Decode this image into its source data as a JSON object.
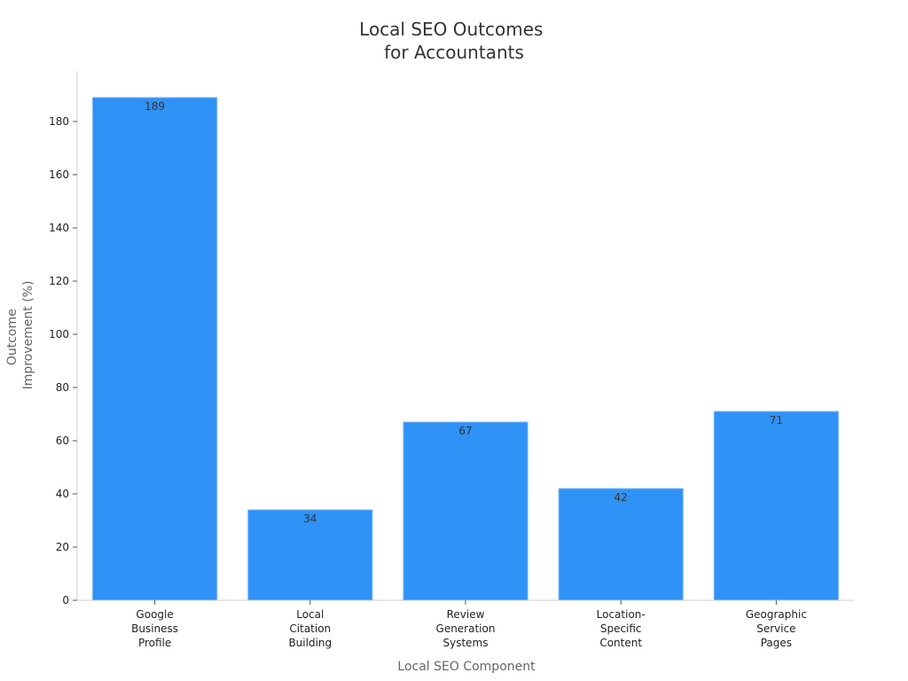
{
  "chart_data": {
    "type": "bar",
    "title": [
      "Local SEO Outcomes",
      "for Accountants"
    ],
    "xlabel": "Local SEO Component",
    "ylabel": [
      "Outcome",
      "Improvement (%)"
    ],
    "categories": [
      [
        "Google",
        "Business",
        "Profile"
      ],
      [
        "Local",
        "Citation",
        "Building"
      ],
      [
        "Review",
        "Generation",
        "Systems"
      ],
      [
        "Location-",
        "Specific",
        "Content"
      ],
      [
        "Geographic",
        "Service",
        "Pages"
      ]
    ],
    "values": [
      189,
      34,
      67,
      42,
      71
    ],
    "data_labels": [
      "189",
      "34",
      "67",
      "42",
      "71"
    ],
    "ylim": [
      0,
      199
    ],
    "yticks": [
      0,
      20,
      40,
      60,
      80,
      100,
      120,
      140,
      160,
      180
    ],
    "grid": false,
    "legend": "none",
    "colors": {
      "bar": "#2f92f6",
      "bar_edge": "#7ab8f8",
      "axis": "#cccccc",
      "tick": "#555555"
    }
  }
}
